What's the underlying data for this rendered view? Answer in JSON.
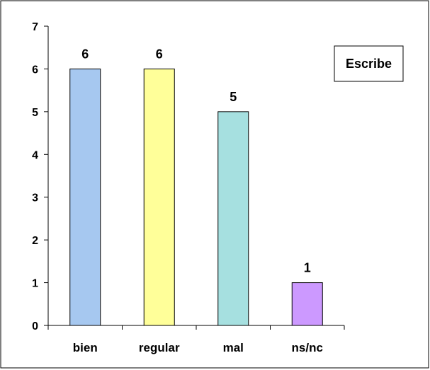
{
  "chart_data": {
    "type": "bar",
    "categories": [
      "bien",
      "regular",
      "mal",
      "ns/nc"
    ],
    "values": [
      6,
      6,
      5,
      1
    ],
    "data_labels": [
      "6",
      "6",
      "5",
      "1"
    ],
    "bar_colors": [
      "#a6c8f0",
      "#ffff99",
      "#a6e0e0",
      "#cc99ff"
    ],
    "ylim": [
      0,
      7
    ],
    "y_ticks": [
      0,
      1,
      2,
      3,
      4,
      5,
      6,
      7
    ],
    "grid": false,
    "legend": {
      "text": "Escribe",
      "placement": "top-right"
    }
  }
}
